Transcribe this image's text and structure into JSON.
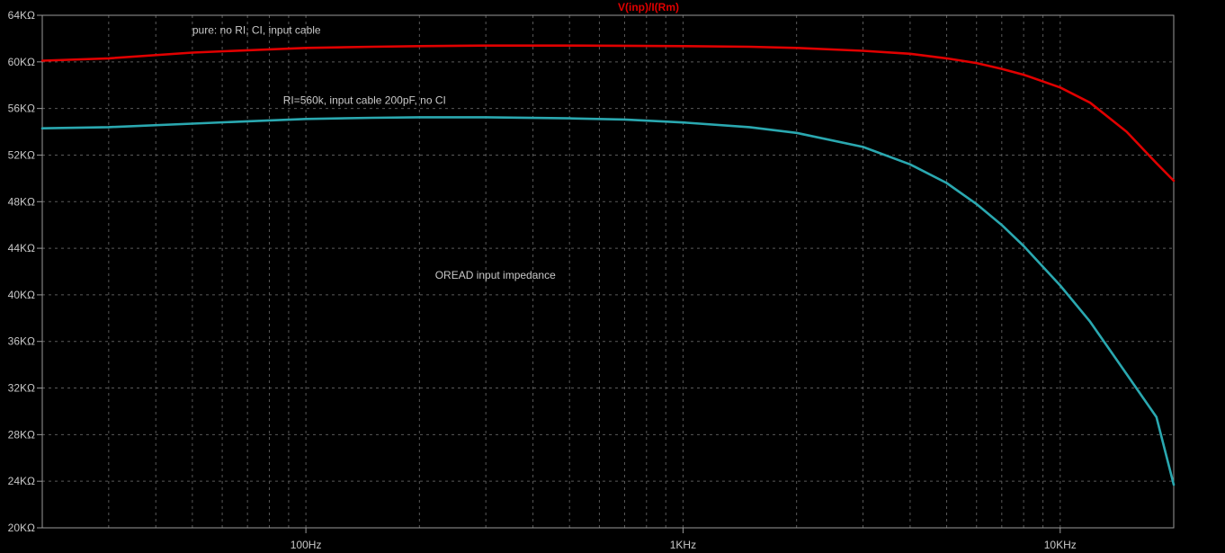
{
  "chart_data": {
    "type": "line",
    "title": "V(inp)/I(Rm)",
    "title_color": "#e00000",
    "x_scale": "log",
    "x_unit": "Hz",
    "xlim": [
      20,
      20000
    ],
    "ylim": [
      20000,
      64000
    ],
    "grid": true,
    "background": "#000000",
    "x_ticks": [
      {
        "value": 100,
        "label": "100Hz"
      },
      {
        "value": 1000,
        "label": "1KHz"
      },
      {
        "value": 10000,
        "label": "10KHz"
      }
    ],
    "y_ticks": [
      {
        "value": 20000,
        "label": "20KΩ"
      },
      {
        "value": 24000,
        "label": "24KΩ"
      },
      {
        "value": 28000,
        "label": "28KΩ"
      },
      {
        "value": 32000,
        "label": "32KΩ"
      },
      {
        "value": 36000,
        "label": "36KΩ"
      },
      {
        "value": 40000,
        "label": "40KΩ"
      },
      {
        "value": 44000,
        "label": "44KΩ"
      },
      {
        "value": 48000,
        "label": "48KΩ"
      },
      {
        "value": 52000,
        "label": "52KΩ"
      },
      {
        "value": 56000,
        "label": "56KΩ"
      },
      {
        "value": 60000,
        "label": "60KΩ"
      },
      {
        "value": 64000,
        "label": "64KΩ"
      }
    ],
    "series": [
      {
        "color": "#e00000",
        "x": [
          20,
          30,
          50,
          70,
          100,
          150,
          200,
          300,
          500,
          700,
          1000,
          1500,
          2000,
          3000,
          4000,
          5000,
          6000,
          7000,
          8000,
          10000,
          12000,
          15000,
          18000,
          20000
        ],
        "y": [
          60100,
          60300,
          60800,
          61000,
          61200,
          61300,
          61350,
          61400,
          61400,
          61380,
          61350,
          61300,
          61200,
          60950,
          60700,
          60300,
          59900,
          59400,
          58900,
          57800,
          56500,
          54000,
          51300,
          49800
        ]
      },
      {
        "color": "#2aa8b0",
        "x": [
          20,
          30,
          50,
          70,
          100,
          150,
          200,
          300,
          500,
          700,
          1000,
          1500,
          2000,
          3000,
          4000,
          5000,
          6000,
          7000,
          8000,
          10000,
          12000,
          15000,
          18000,
          20000
        ],
        "y": [
          54300,
          54400,
          54700,
          54900,
          55100,
          55200,
          55250,
          55250,
          55150,
          55050,
          54800,
          54400,
          53900,
          52700,
          51200,
          49600,
          47800,
          46000,
          44200,
          40800,
          37700,
          33200,
          29500,
          23700
        ]
      }
    ],
    "annotations": [
      {
        "text": "pure: no  RI, CI, input cable",
        "x": 50,
        "y": 62400
      },
      {
        "text": "RI=560k, input cable 200pF, no CI",
        "x": 87,
        "y": 56400
      },
      {
        "text": "OREAD input impedance",
        "x": 220,
        "y": 41400
      }
    ]
  }
}
